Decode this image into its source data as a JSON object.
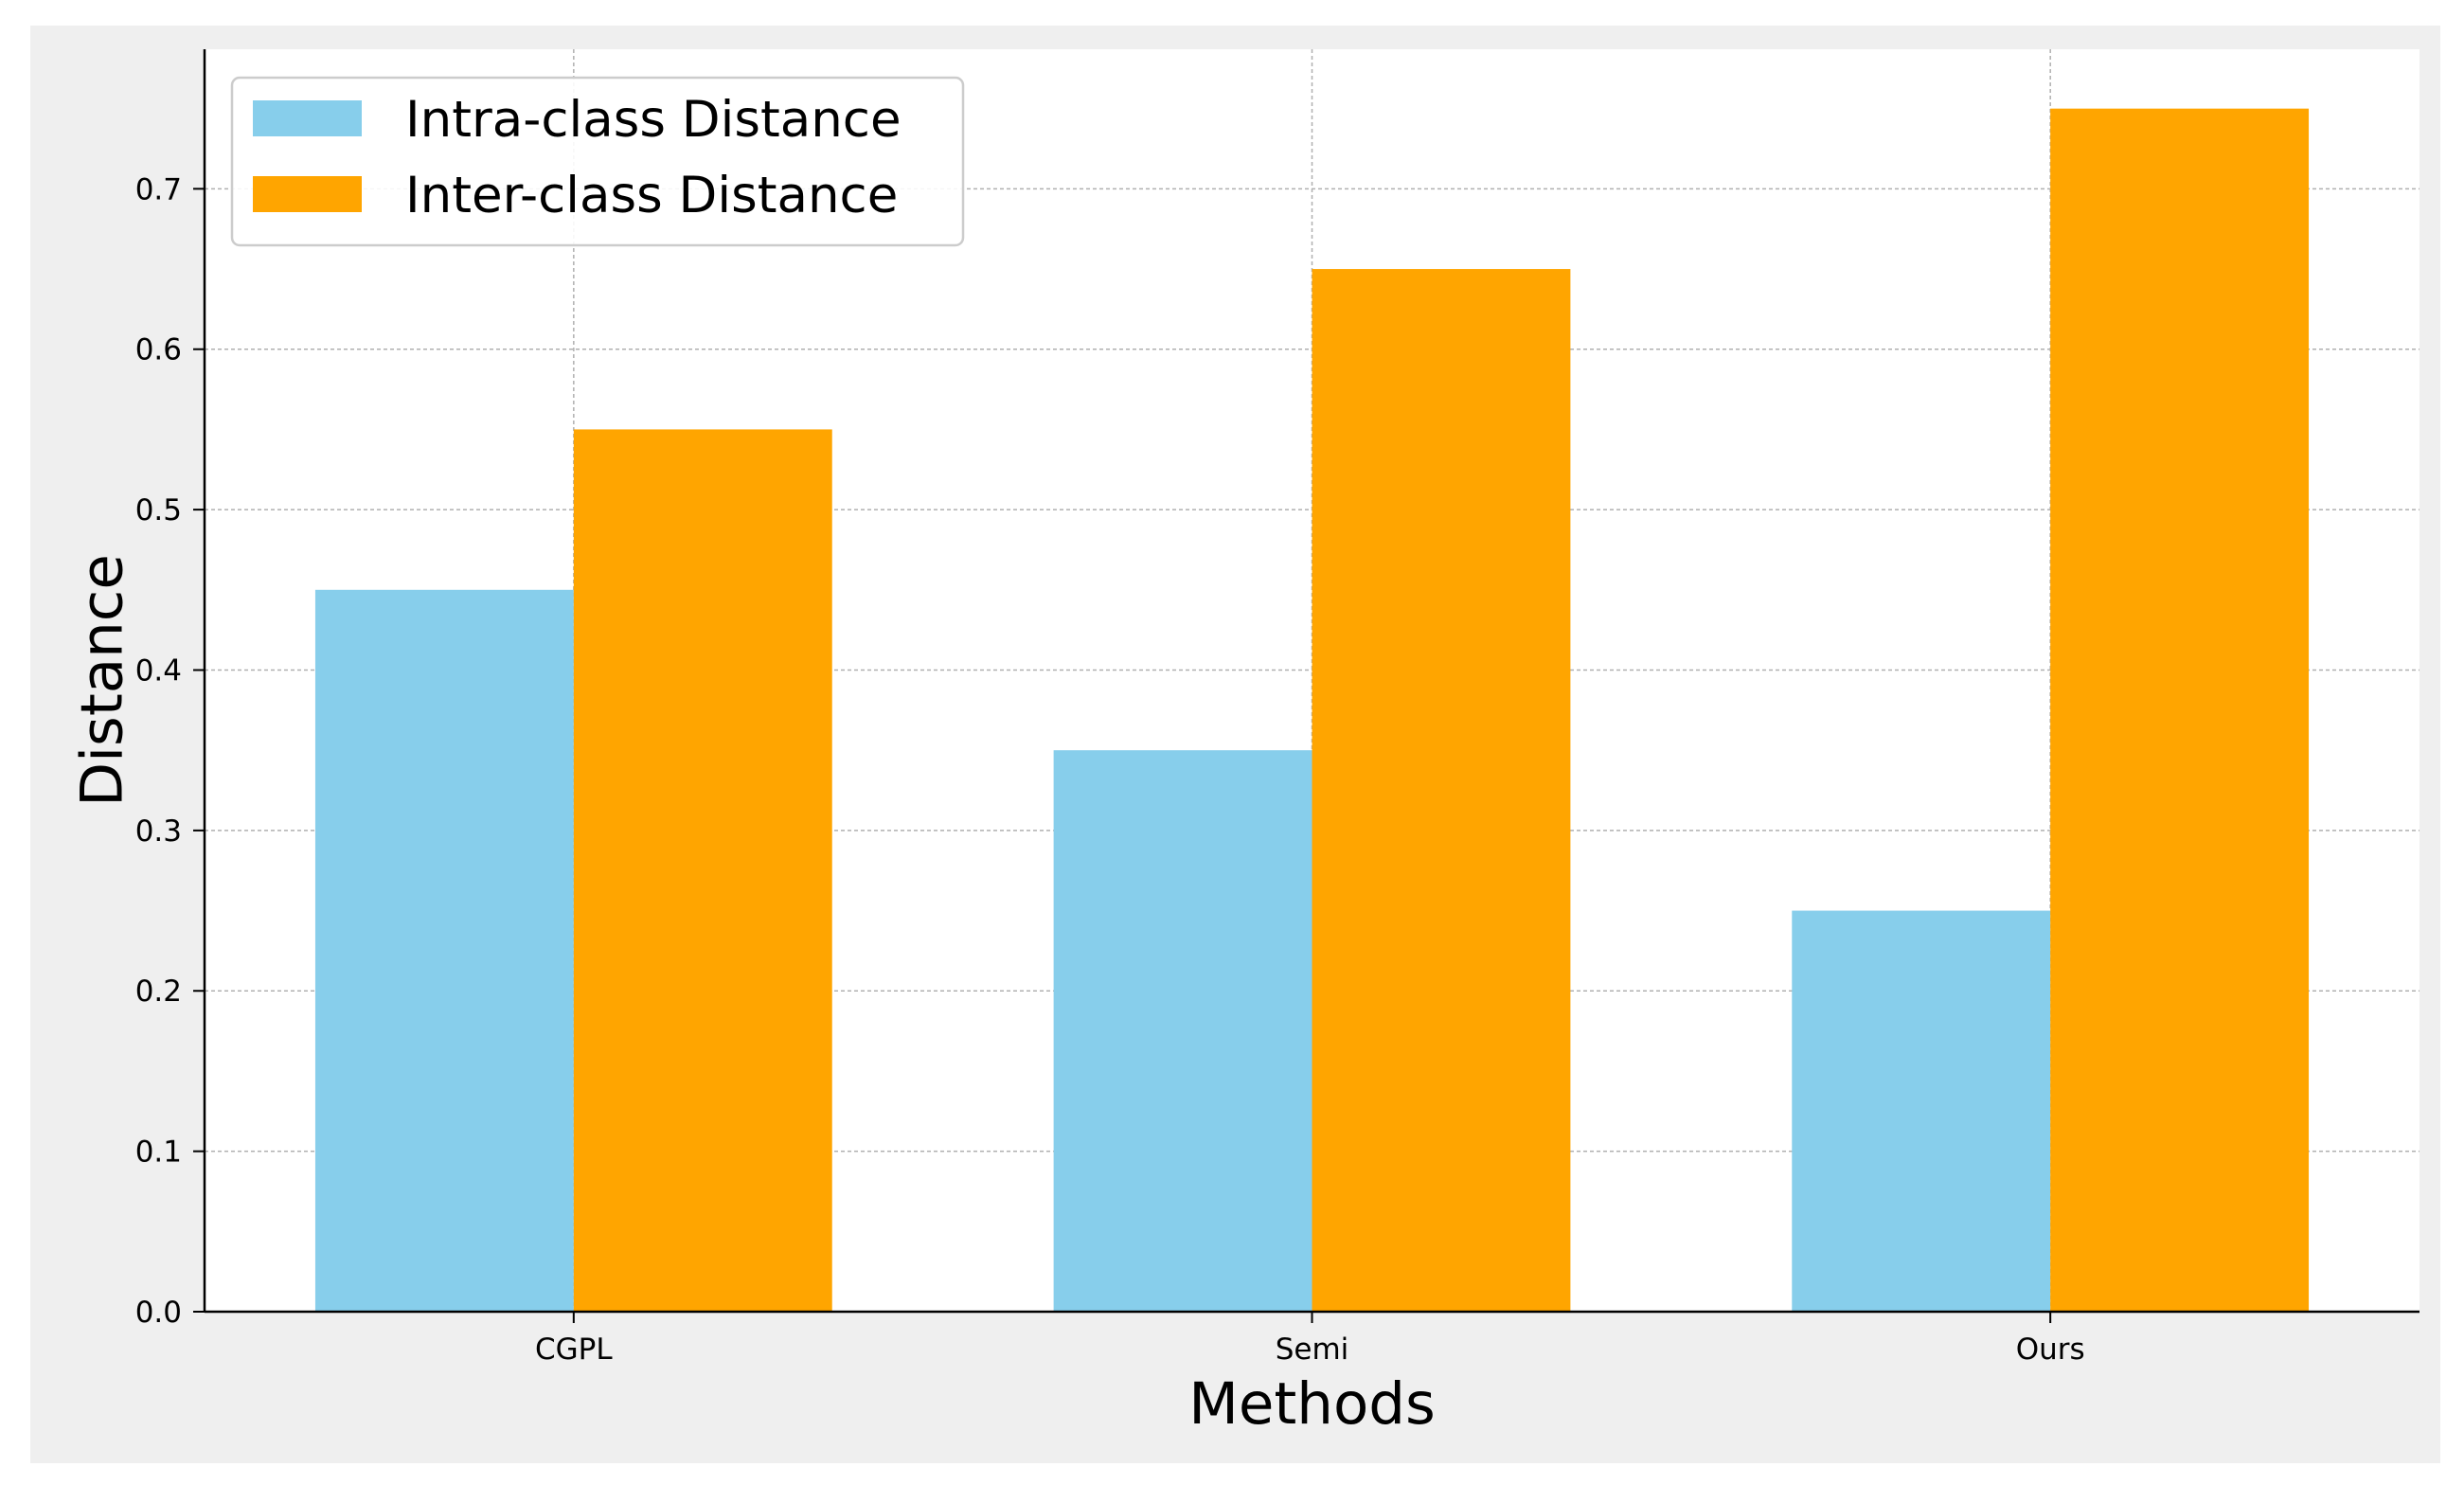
{
  "chart_data": {
    "type": "bar",
    "title": "",
    "xlabel": "Methods",
    "ylabel": "Distance",
    "categories": [
      "CGPL",
      "Semi",
      "Ours"
    ],
    "series": [
      {
        "name": "Intra-class Distance",
        "values": [
          0.45,
          0.35,
          0.25
        ],
        "color": "#87CEEB"
      },
      {
        "name": "Inter-class Distance",
        "values": [
          0.55,
          0.65,
          0.75
        ],
        "color": "#FFA500"
      }
    ],
    "ylim": [
      0,
      0.787
    ],
    "yticks": [
      "0.0",
      "0.1",
      "0.2",
      "0.3",
      "0.4",
      "0.5",
      "0.6",
      "0.7"
    ],
    "grid": true,
    "legend_position": "top-left",
    "colors": {
      "outer_background": "#EFEFEF",
      "plot_background": "#FFFFFF",
      "grid": "#B0B0B0",
      "axis": "#000000"
    }
  }
}
